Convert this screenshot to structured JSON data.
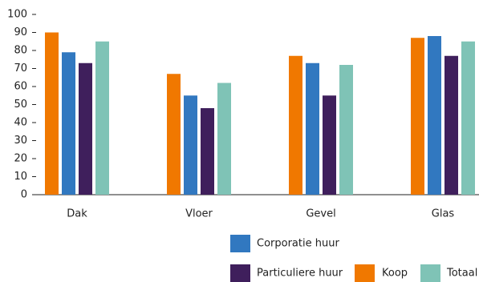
{
  "chart_data": {
    "type": "bar",
    "categories": [
      "Dak",
      "Vloer",
      "Gevel",
      "Glas"
    ],
    "series": [
      {
        "name": "Koop",
        "color": "#f07800",
        "values": [
          90,
          67,
          77,
          87
        ]
      },
      {
        "name": "Corporatie huur",
        "color": "#3178c0",
        "values": [
          79,
          55,
          73,
          88
        ]
      },
      {
        "name": "Particuliere huur",
        "color": "#3f1f5c",
        "values": [
          73,
          48,
          55,
          77
        ]
      },
      {
        "name": "Totaal",
        "color": "#7fc3b6",
        "values": [
          85,
          62,
          72,
          85
        ]
      }
    ],
    "ylim": [
      0,
      100
    ],
    "yticks": [
      0,
      10,
      20,
      30,
      40,
      50,
      60,
      70,
      80,
      90,
      100
    ],
    "grid": false
  }
}
